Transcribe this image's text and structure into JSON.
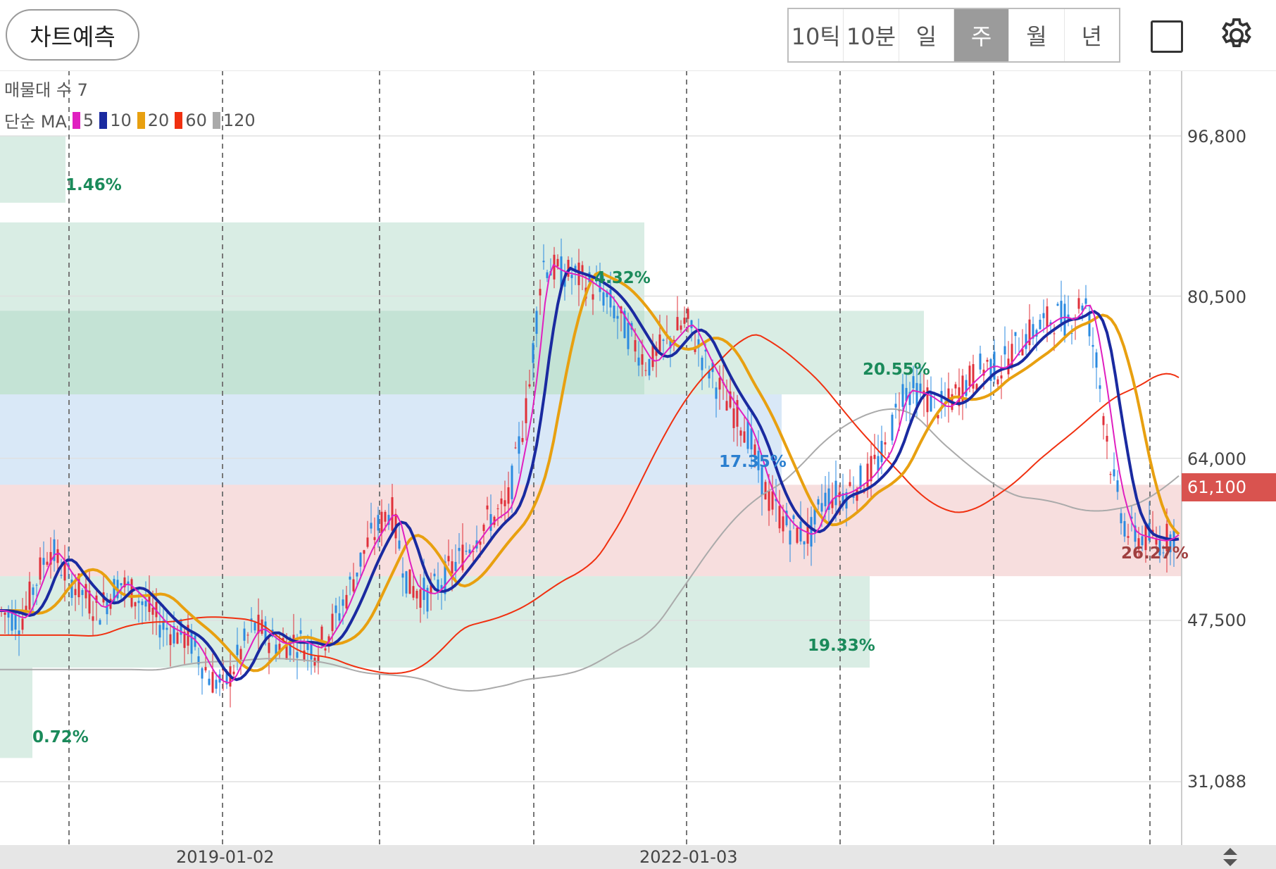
{
  "toolbar": {
    "predict_label": "차트예측",
    "periods": [
      "10틱",
      "10분",
      "일",
      "주",
      "월",
      "년"
    ],
    "active_period": "주"
  },
  "legend": {
    "volume_profile": "매물대 수 7",
    "ma_prefix": "단순 MA",
    "ma_items": [
      {
        "label": "5",
        "color": "#e020c0"
      },
      {
        "label": "10",
        "color": "#1a2aa0"
      },
      {
        "label": "20",
        "color": "#e8a010"
      },
      {
        "label": "60",
        "color": "#f03010"
      },
      {
        "label": "120",
        "color": "#aaaaaa"
      }
    ]
  },
  "y_axis": {
    "ticks": [
      "96,800",
      "80,500",
      "64,000",
      "47,500",
      "31,088"
    ],
    "current_price": "61,100"
  },
  "x_axis": {
    "ticks": [
      "2019-01-02",
      "2022-01-03"
    ]
  },
  "zones": [
    {
      "label": "1.46%",
      "color": "#1a8a5a"
    },
    {
      "label": "4.32%",
      "color": "#1a8a5a"
    },
    {
      "label": "20.55%",
      "color": "#1a8a5a"
    },
    {
      "label": "17.35%",
      "color": "#2a7fd0"
    },
    {
      "label": "26.27%",
      "color": "#a04040"
    },
    {
      "label": "19.33%",
      "color": "#1a8a5a"
    },
    {
      "label": "0.72%",
      "color": "#1a8a5a"
    }
  ],
  "chart_data": {
    "type": "line",
    "title": "",
    "ylim": [
      31088,
      96800
    ],
    "series": [
      {
        "name": "5",
        "color": "#e020c0"
      },
      {
        "name": "10",
        "color": "#1a2aa0"
      },
      {
        "name": "20",
        "color": "#e8a010"
      },
      {
        "name": "60",
        "color": "#f03010"
      },
      {
        "name": "120",
        "color": "#aaaaaa"
      }
    ]
  }
}
